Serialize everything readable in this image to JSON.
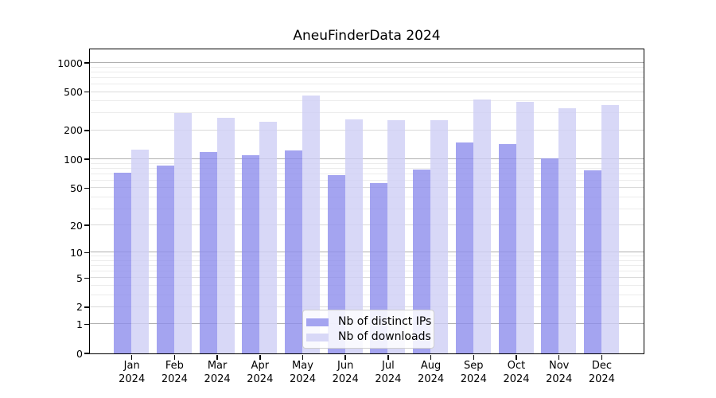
{
  "title": "AneuFinderData 2024",
  "colors": {
    "ips_bar": "#a4a4f0",
    "downloads_bar": "#d8d8f7",
    "grid_major": "#b0b0b0",
    "grid_mid": "#dadada",
    "grid_minor": "#ececec",
    "axis": "#000000",
    "background": "#ffffff"
  },
  "legend": {
    "items": [
      {
        "label": "Nb of distinct IPs",
        "series": "ips_bar"
      },
      {
        "label": "Nb of downloads",
        "series": "downloads_bar"
      }
    ]
  },
  "x_axis": {
    "months": [
      "Jan",
      "Feb",
      "Mar",
      "Apr",
      "May",
      "Jun",
      "Jul",
      "Aug",
      "Sep",
      "Oct",
      "Nov",
      "Dec"
    ],
    "year": "2024"
  },
  "y_axis": {
    "ticks": [
      0,
      1,
      2,
      5,
      10,
      20,
      50,
      100,
      200,
      500,
      1000
    ],
    "scale": "log1p"
  },
  "chart_data": {
    "type": "bar",
    "title": "AneuFinderData 2024",
    "xlabel": "",
    "ylabel": "",
    "categories": [
      "Jan 2024",
      "Feb 2024",
      "Mar 2024",
      "Apr 2024",
      "May 2024",
      "Jun 2024",
      "Jul 2024",
      "Aug 2024",
      "Sep 2024",
      "Oct 2024",
      "Nov 2024",
      "Dec 2024"
    ],
    "series": [
      {
        "name": "Nb of distinct IPs",
        "values": [
          72,
          85,
          117,
          109,
          123,
          68,
          56,
          78,
          149,
          142,
          102,
          76
        ]
      },
      {
        "name": "Nb of downloads",
        "values": [
          124,
          302,
          268,
          245,
          458,
          256,
          255,
          255,
          413,
          394,
          334,
          363
        ]
      }
    ],
    "yscale": "log1p",
    "yticks": [
      0,
      1,
      2,
      5,
      10,
      20,
      50,
      100,
      200,
      500,
      1000
    ],
    "ylim": [
      0,
      1370
    ],
    "grid": true,
    "legend_position": "inside lower center"
  }
}
